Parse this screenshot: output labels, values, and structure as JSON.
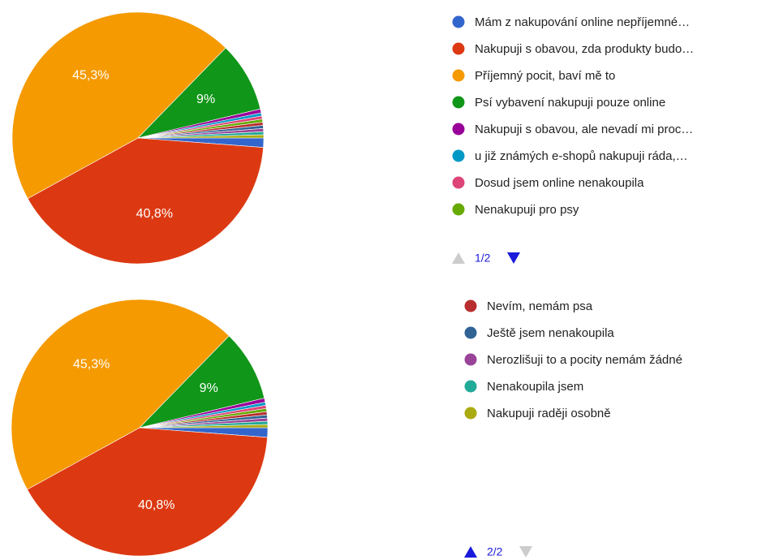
{
  "chart_data": [
    {
      "type": "pie",
      "categories": [
        "Mám z nakupování online nepříjemné…",
        "Nakupuji s obavou, zda produkty budo…",
        "Příjemný pocit, baví mě to",
        "Psí vybavení nakupuji pouze online",
        "Nakupuji s obavou, ale nevadí mi proc…",
        "u již známých e-shopů nakupuji ráda,…",
        "Dosud jsem online nenakoupila",
        "Nenakupuji pro psy",
        null,
        null,
        null,
        null,
        null
      ],
      "values": [
        1.2,
        40.8,
        45.3,
        9,
        0.5,
        0.4,
        0.4,
        0.4,
        0.4,
        0.4,
        0.4,
        0.4,
        0.4
      ],
      "value_labels": [
        null,
        "40,8%",
        "45,3%",
        "9%",
        null,
        null,
        null,
        null,
        null,
        null,
        null,
        null,
        null
      ],
      "colors": [
        "#3366cc",
        "#dc3912",
        "#f59a00",
        "#109618",
        "#990099",
        "#0099c6",
        "#dd4477",
        "#66aa00",
        "#b82e2e",
        "#316395",
        "#994499",
        "#22aa99",
        "#aaaa11"
      ],
      "legend_page": "1/2"
    },
    {
      "type": "pie",
      "categories": [
        null,
        null,
        null,
        null,
        null,
        null,
        null,
        null,
        "Nevím, nemám psa",
        "Ještě jsem nenakoupila",
        "Nerozlišuji to a pocity nemám žádné",
        "Nenakoupila jsem",
        "Nakupuji raději osobně"
      ],
      "values": [
        1.2,
        40.8,
        45.3,
        9,
        0.5,
        0.4,
        0.4,
        0.4,
        0.4,
        0.4,
        0.4,
        0.4,
        0.4
      ],
      "value_labels": [
        null,
        "40,8%",
        "45,3%",
        "9%",
        null,
        null,
        null,
        null,
        null,
        null,
        null,
        null,
        null
      ],
      "colors": [
        "#3366cc",
        "#dc3912",
        "#f59a00",
        "#109618",
        "#990099",
        "#0099c6",
        "#dd4477",
        "#66aa00",
        "#b82e2e",
        "#316395",
        "#994499",
        "#22aa99",
        "#aaaa11"
      ],
      "legend_page": "2/2"
    }
  ]
}
